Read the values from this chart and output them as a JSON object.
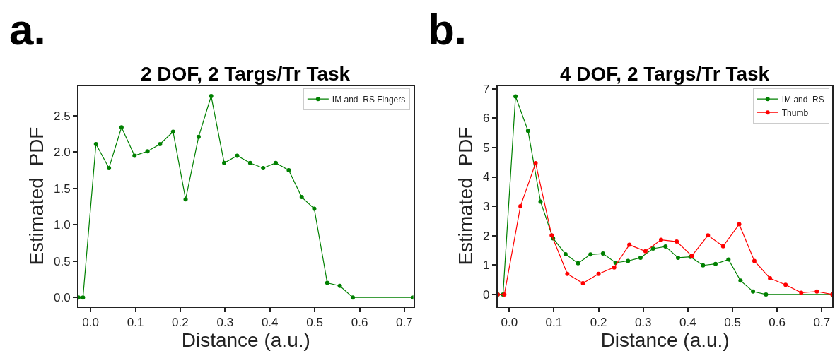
{
  "chart_data": [
    {
      "type": "line",
      "title": "2 DOF, 2 Targs/Tr Task",
      "xlabel": "Distance (a.u.)",
      "ylabel": "Estimated  PDF",
      "annotations": [
        "a."
      ],
      "xlim": [
        -0.027,
        0.72
      ],
      "ylim": [
        -0.12,
        2.91
      ],
      "xticks": [
        {
          "value": 0,
          "label": "0.0"
        },
        0.1,
        0.2,
        0.3,
        0.4,
        0.5,
        0.6,
        0.7
      ],
      "yticks": [
        {
          "value": 0,
          "label": "0.0"
        },
        0.5,
        {
          "value": 1,
          "label": "1.0"
        },
        1.5,
        {
          "value": 2,
          "label": "2.0"
        },
        2.5
      ],
      "legend": "top right",
      "marker": "circle",
      "line_style": "solid",
      "series": [
        {
          "name": "IM and  RS Fingers",
          "color": "#008000",
          "x": [
            -0.027,
            -0.017,
            0.012,
            0.041,
            0.069,
            0.098,
            0.127,
            0.155,
            0.184,
            0.212,
            0.241,
            0.269,
            0.298,
            0.327,
            0.356,
            0.385,
            0.413,
            0.442,
            0.471,
            0.499,
            0.528,
            0.556,
            0.585,
            0.72
          ],
          "values": [
            0,
            0,
            2.11,
            1.78,
            2.34,
            1.95,
            2.01,
            2.11,
            2.28,
            1.35,
            2.21,
            2.77,
            1.85,
            1.95,
            1.85,
            1.78,
            1.85,
            1.75,
            1.38,
            1.22,
            0.2,
            0.16,
            0,
            0
          ]
        }
      ]
    },
    {
      "type": "line",
      "title": "4 DOF, 2 Targs/Tr Task",
      "xlabel": "Distance (a.u.)",
      "ylabel": "Estimated  PDF",
      "annotations": [
        "b."
      ],
      "xlim": [
        -0.026,
        0.724
      ],
      "ylim": [
        -0.4,
        7.1
      ],
      "xticks": [
        {
          "value": 0,
          "label": "0.0"
        },
        0.1,
        0.2,
        0.3,
        0.4,
        0.5,
        0.6,
        0.7
      ],
      "yticks": [
        0,
        1,
        2,
        3,
        4,
        5,
        6,
        7
      ],
      "legend": "top right",
      "marker": "circle",
      "line_style": "solid",
      "series": [
        {
          "name": "IM and  RS",
          "color": "#008000",
          "x": [
            -0.026,
            -0.014,
            0.014,
            0.042,
            0.07,
            0.098,
            0.126,
            0.154,
            0.182,
            0.21,
            0.238,
            0.266,
            0.294,
            0.322,
            0.35,
            0.378,
            0.406,
            0.434,
            0.462,
            0.491,
            0.518,
            0.546,
            0.575,
            0.724
          ],
          "values": [
            0,
            0,
            6.74,
            5.57,
            3.16,
            1.91,
            1.37,
            1.06,
            1.36,
            1.39,
            1.08,
            1.14,
            1.25,
            1.56,
            1.63,
            1.25,
            1.28,
            0.99,
            1.04,
            1.19,
            0.47,
            0.1,
            0,
            0
          ]
        },
        {
          "name": "Thumb",
          "color": "#ff0000",
          "x": [
            -0.026,
            -0.011,
            0.025,
            0.059,
            0.095,
            0.13,
            0.165,
            0.2,
            0.235,
            0.269,
            0.305,
            0.34,
            0.375,
            0.409,
            0.445,
            0.479,
            0.515,
            0.549,
            0.584,
            0.619,
            0.654,
            0.689,
            0.724
          ],
          "values": [
            0,
            0,
            3.0,
            4.47,
            2.01,
            0.7,
            0.38,
            0.7,
            0.92,
            1.69,
            1.47,
            1.86,
            1.8,
            1.31,
            2.01,
            1.64,
            2.39,
            1.14,
            0.55,
            0.33,
            0.06,
            0.1,
            0
          ]
        }
      ]
    }
  ]
}
